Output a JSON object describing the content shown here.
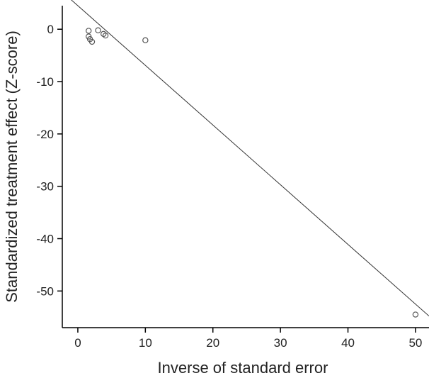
{
  "chart_data": {
    "type": "scatter",
    "title": "",
    "xlabel": "Inverse of standard error",
    "ylabel": "Standardized treatment effect (Z-score)",
    "xlim": [
      -2.3,
      52
    ],
    "ylim": [
      -57,
      4.5
    ],
    "xticks": [
      0,
      10,
      20,
      30,
      40,
      50
    ],
    "yticks": [
      0,
      -10,
      -20,
      -30,
      -40,
      -50
    ],
    "grid": false,
    "legend": "none",
    "points": [
      {
        "x": 1.6,
        "y": -0.3
      },
      {
        "x": 1.6,
        "y": -1.4
      },
      {
        "x": 1.8,
        "y": -1.9
      },
      {
        "x": 2.1,
        "y": -2.4
      },
      {
        "x": 3.0,
        "y": -0.2
      },
      {
        "x": 3.8,
        "y": -0.9
      },
      {
        "x": 4.1,
        "y": -1.2
      },
      {
        "x": 10.0,
        "y": -2.1
      },
      {
        "x": 50.0,
        "y": -54.5
      }
    ],
    "regression_line": {
      "intercept": 4.5,
      "slope": -1.14
    },
    "marker_color": "#555555",
    "line_color": "#333333"
  }
}
